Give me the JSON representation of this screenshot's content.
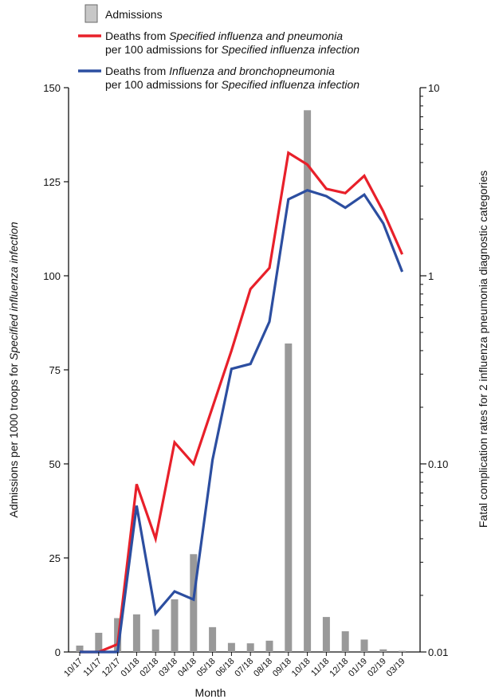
{
  "chart_data": {
    "type": "bar",
    "xlabel": "Month",
    "ylabel_left": [
      "Admissions per 1000 troops for ",
      "Specified influenza infection"
    ],
    "ylabel_right": "Fatal complication rates for 2 influenza pneumonia diagnostic categories",
    "categories": [
      "10/17",
      "11/17",
      "12/17",
      "01/18",
      "02/18",
      "03/18",
      "04/18",
      "05/18",
      "06/18",
      "07/18",
      "08/18",
      "09/18",
      "10/18",
      "11/18",
      "12/18",
      "01/19",
      "02/19",
      "03/19"
    ],
    "ylim_left": [
      0,
      150
    ],
    "yticks_left": [
      "0",
      "25",
      "50",
      "75",
      "100",
      "125",
      "150"
    ],
    "ylim_right": [
      0.01,
      10
    ],
    "yscale_right": "log",
    "yticks_right": [
      "0.01",
      "0.10",
      "1",
      "10"
    ],
    "grid": false,
    "legend_position": "top",
    "series": [
      {
        "name": "Admissions",
        "type": "bar",
        "axis": "left",
        "color": "#999999",
        "values": [
          1.7,
          5.1,
          9,
          10,
          6,
          14,
          26,
          6.6,
          2.4,
          2.3,
          3,
          82,
          144,
          9.3,
          5.5,
          3.3,
          0.7,
          0.3
        ]
      },
      {
        "name_parts": [
          "Deaths from ",
          "Specified influenza and pneumonia",
          "per 100 admissions for ",
          "Specified influenza infection"
        ],
        "type": "line",
        "axis": "right",
        "color": "#e8202a",
        "values": [
          0.01,
          0.01,
          0.011,
          0.078,
          0.04,
          0.13,
          0.1,
          0.2,
          0.4,
          0.85,
          1.1,
          4.5,
          3.9,
          2.9,
          2.75,
          3.4,
          2.2,
          1.3
        ]
      },
      {
        "name_parts": [
          "Deaths from ",
          "Influenza and bronchopneumonia",
          "per 100 admissions for ",
          "Specified influenza infection"
        ],
        "type": "line",
        "axis": "right",
        "color": "#2c4ea0",
        "values": [
          0.01,
          0.01,
          0.01,
          0.06,
          0.016,
          0.021,
          0.019,
          0.105,
          0.32,
          0.34,
          0.57,
          2.55,
          2.85,
          2.65,
          2.3,
          2.7,
          1.9,
          1.05
        ]
      }
    ]
  }
}
